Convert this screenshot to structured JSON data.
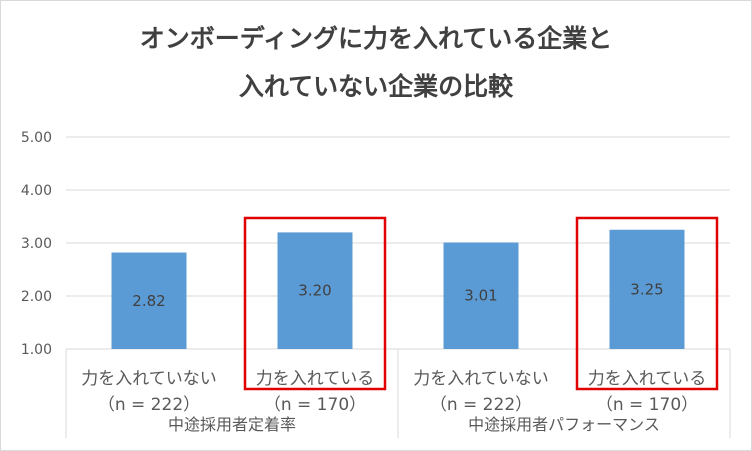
{
  "chart_data": {
    "type": "bar",
    "title_line1": "オンボーディングに力を入れている企業と",
    "title_line2": "入れていない企業の比較",
    "ylim": [
      1.0,
      5.0
    ],
    "yticks": [
      "1.00",
      "2.00",
      "3.00",
      "4.00",
      "5.00"
    ],
    "grid": true,
    "bar_color": "#5b9bd5",
    "highlight_color": "#e00000",
    "categories": [
      {
        "line1": "力を入れていない",
        "line2": "（n = 222）",
        "group": 0,
        "value": 2.82,
        "label": "2.82",
        "highlight": false
      },
      {
        "line1": "力を入れている",
        "line2": "（n = 170）",
        "group": 0,
        "value": 3.2,
        "label": "3.20",
        "highlight": true
      },
      {
        "line1": "力を入れていない",
        "line2": "（n = 222）",
        "group": 1,
        "value": 3.01,
        "label": "3.01",
        "highlight": false
      },
      {
        "line1": "力を入れている",
        "line2": "（n = 170）",
        "group": 1,
        "value": 3.25,
        "label": "3.25",
        "highlight": true
      }
    ],
    "groups": [
      "中途採用者定着率",
      "中途採用者パフォーマンス"
    ]
  }
}
